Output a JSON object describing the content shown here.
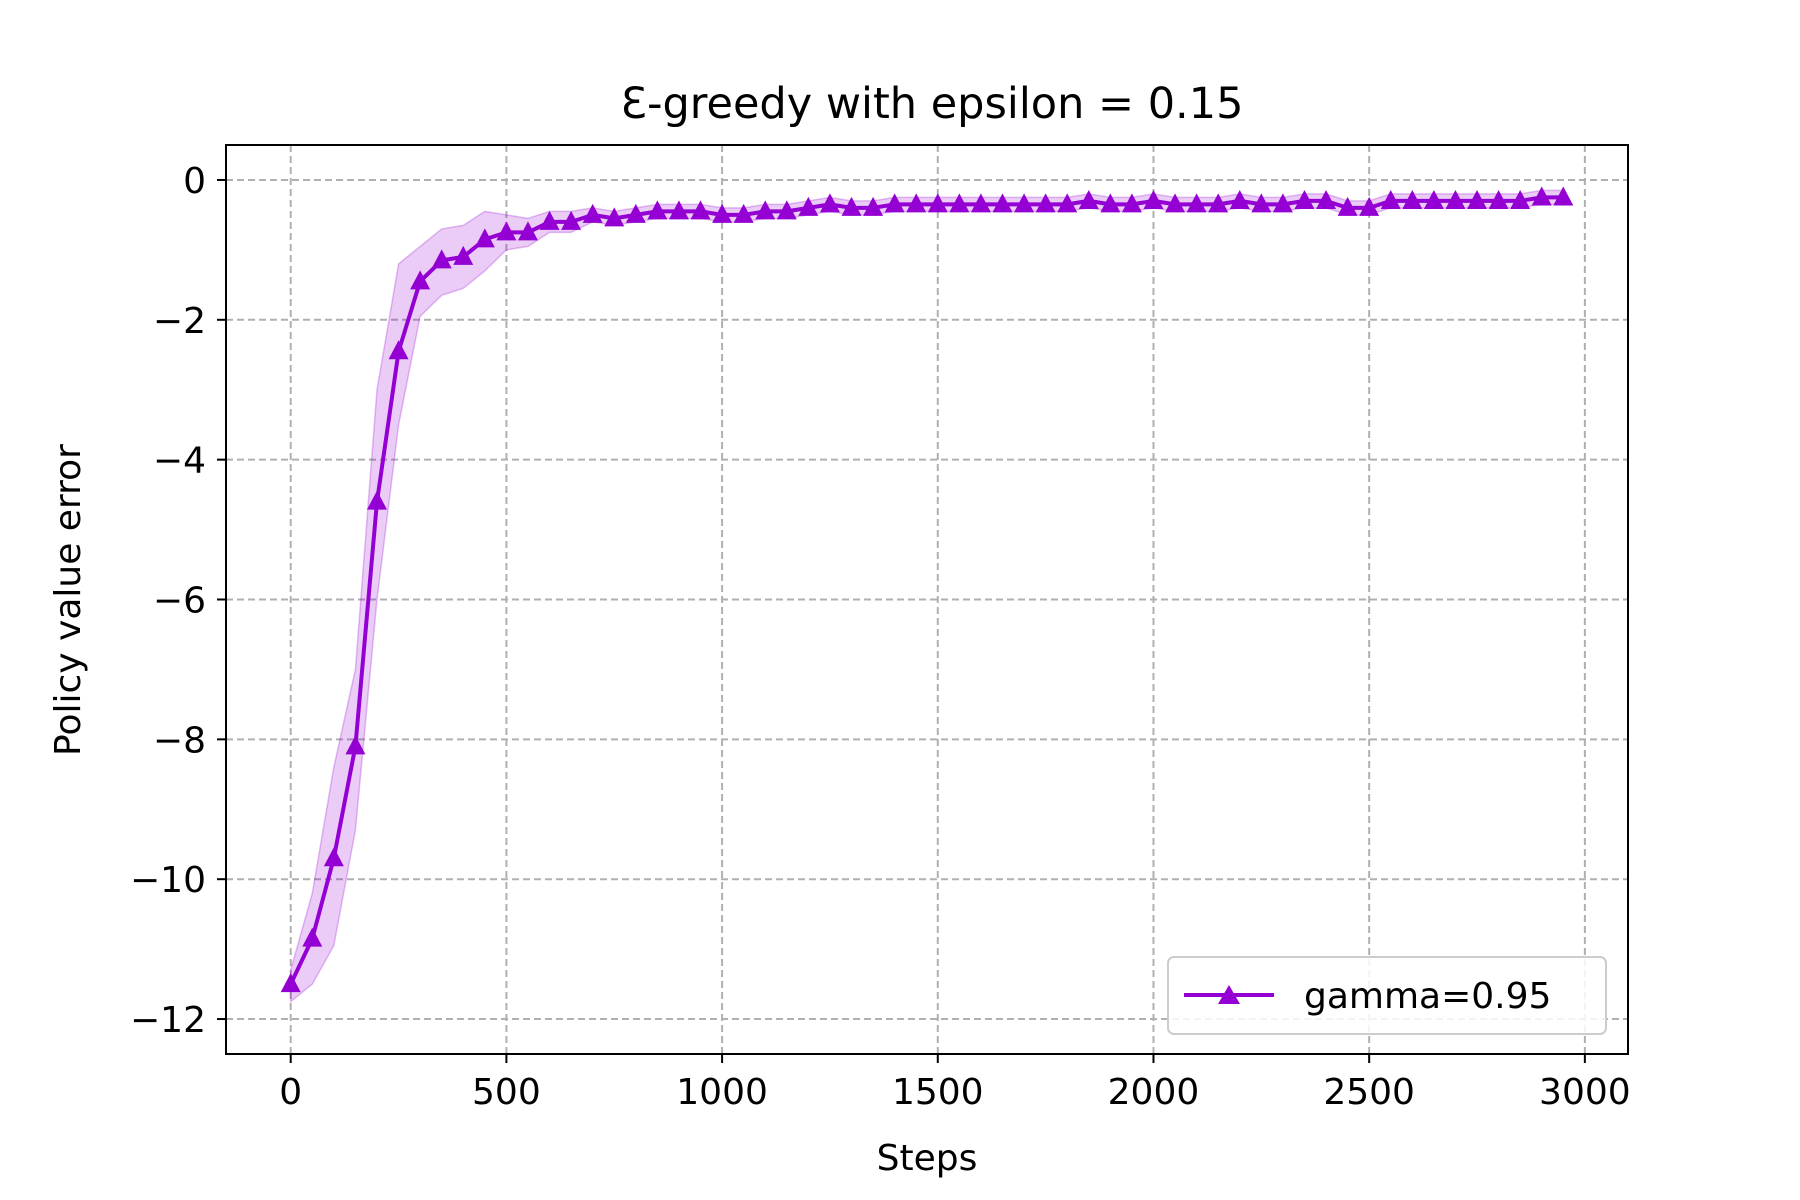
{
  "chart_data": {
    "type": "line",
    "title": "Ɛ-greedy with epsilon = 0.15",
    "xlabel": "Steps",
    "ylabel": "Policy value error",
    "xlim": [
      -150,
      3100
    ],
    "ylim": [
      -12.5,
      0.5
    ],
    "xticks": [
      0,
      500,
      1000,
      1500,
      2000,
      2500,
      3000
    ],
    "xtick_labels": [
      "0",
      "500",
      "1000",
      "1500",
      "2000",
      "2500",
      "3000"
    ],
    "yticks": [
      0,
      -2,
      -4,
      -6,
      -8,
      -10,
      -12
    ],
    "ytick_labels": [
      "0",
      "−2",
      "−4",
      "−6",
      "−8",
      "−10",
      "−12"
    ],
    "grid": true,
    "legend_position": "lower-right",
    "series": [
      {
        "name": "gamma=0.95",
        "color": "#9400d3",
        "marker": "triangle-up",
        "x": [
          0,
          50,
          100,
          150,
          200,
          250,
          300,
          350,
          400,
          450,
          500,
          550,
          600,
          650,
          700,
          750,
          800,
          850,
          900,
          950,
          1000,
          1050,
          1100,
          1150,
          1200,
          1250,
          1300,
          1350,
          1400,
          1450,
          1500,
          1550,
          1600,
          1650,
          1700,
          1750,
          1800,
          1850,
          1900,
          1950,
          2000,
          2050,
          2100,
          2150,
          2200,
          2250,
          2300,
          2350,
          2400,
          2450,
          2500,
          2550,
          2600,
          2650,
          2700,
          2750,
          2800,
          2850,
          2900,
          2950
        ],
        "y": [
          -11.5,
          -10.85,
          -9.7,
          -8.1,
          -4.6,
          -2.45,
          -1.45,
          -1.15,
          -1.1,
          -0.85,
          -0.75,
          -0.75,
          -0.6,
          -0.6,
          -0.5,
          -0.55,
          -0.5,
          -0.45,
          -0.45,
          -0.45,
          -0.5,
          -0.5,
          -0.45,
          -0.45,
          -0.4,
          -0.35,
          -0.4,
          -0.4,
          -0.35,
          -0.35,
          -0.35,
          -0.35,
          -0.35,
          -0.35,
          -0.35,
          -0.35,
          -0.35,
          -0.3,
          -0.35,
          -0.35,
          -0.3,
          -0.35,
          -0.35,
          -0.35,
          -0.3,
          -0.35,
          -0.35,
          -0.3,
          -0.3,
          -0.4,
          -0.4,
          -0.3,
          -0.3,
          -0.3,
          -0.3,
          -0.3,
          -0.3,
          -0.3,
          -0.25,
          -0.25
        ],
        "y_lower": [
          -11.75,
          -11.5,
          -10.95,
          -9.3,
          -6.0,
          -3.5,
          -1.95,
          -1.65,
          -1.55,
          -1.3,
          -1.0,
          -0.95,
          -0.75,
          -0.75,
          -0.6,
          -0.65,
          -0.6,
          -0.55,
          -0.55,
          -0.55,
          -0.6,
          -0.6,
          -0.55,
          -0.55,
          -0.5,
          -0.45,
          -0.5,
          -0.5,
          -0.45,
          -0.45,
          -0.45,
          -0.45,
          -0.45,
          -0.45,
          -0.45,
          -0.45,
          -0.45,
          -0.4,
          -0.45,
          -0.45,
          -0.4,
          -0.45,
          -0.45,
          -0.45,
          -0.4,
          -0.45,
          -0.45,
          -0.4,
          -0.4,
          -0.5,
          -0.5,
          -0.4,
          -0.4,
          -0.4,
          -0.4,
          -0.4,
          -0.4,
          -0.4,
          -0.35,
          -0.35
        ],
        "y_upper": [
          -11.3,
          -10.2,
          -8.4,
          -7.0,
          -3.0,
          -1.2,
          -0.95,
          -0.7,
          -0.65,
          -0.45,
          -0.5,
          -0.55,
          -0.45,
          -0.45,
          -0.4,
          -0.45,
          -0.4,
          -0.35,
          -0.35,
          -0.35,
          -0.4,
          -0.4,
          -0.35,
          -0.35,
          -0.3,
          -0.25,
          -0.3,
          -0.3,
          -0.25,
          -0.25,
          -0.25,
          -0.25,
          -0.25,
          -0.25,
          -0.25,
          -0.25,
          -0.25,
          -0.2,
          -0.25,
          -0.25,
          -0.2,
          -0.25,
          -0.25,
          -0.25,
          -0.2,
          -0.25,
          -0.25,
          -0.2,
          -0.2,
          -0.3,
          -0.3,
          -0.2,
          -0.2,
          -0.2,
          -0.2,
          -0.2,
          -0.2,
          -0.2,
          -0.15,
          -0.15
        ]
      }
    ]
  }
}
